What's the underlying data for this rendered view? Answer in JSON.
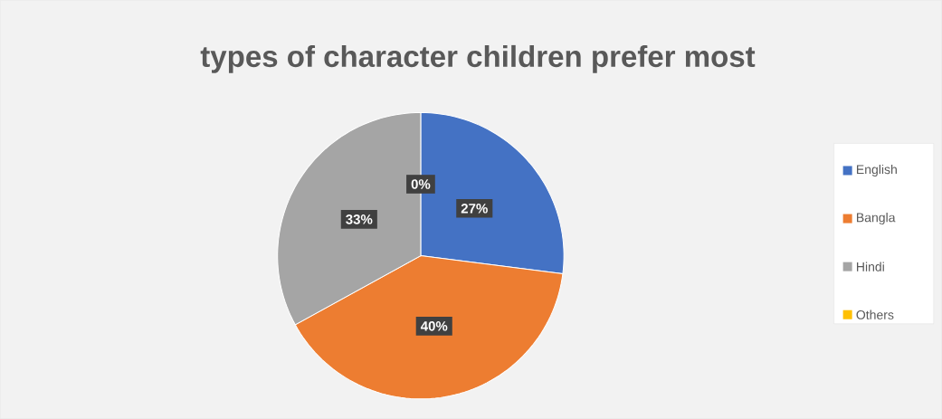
{
  "chart_data": {
    "type": "pie",
    "title": "types of character children prefer most",
    "categories": [
      "English",
      "Bangla",
      "Hindi",
      "Others"
    ],
    "values": [
      27,
      40,
      33,
      0
    ],
    "colors": [
      "#4472c4",
      "#ed7d31",
      "#a5a5a5",
      "#ffc000"
    ],
    "value_labels": [
      "27%",
      "40%",
      "33%",
      "0%"
    ],
    "legend": "right"
  }
}
